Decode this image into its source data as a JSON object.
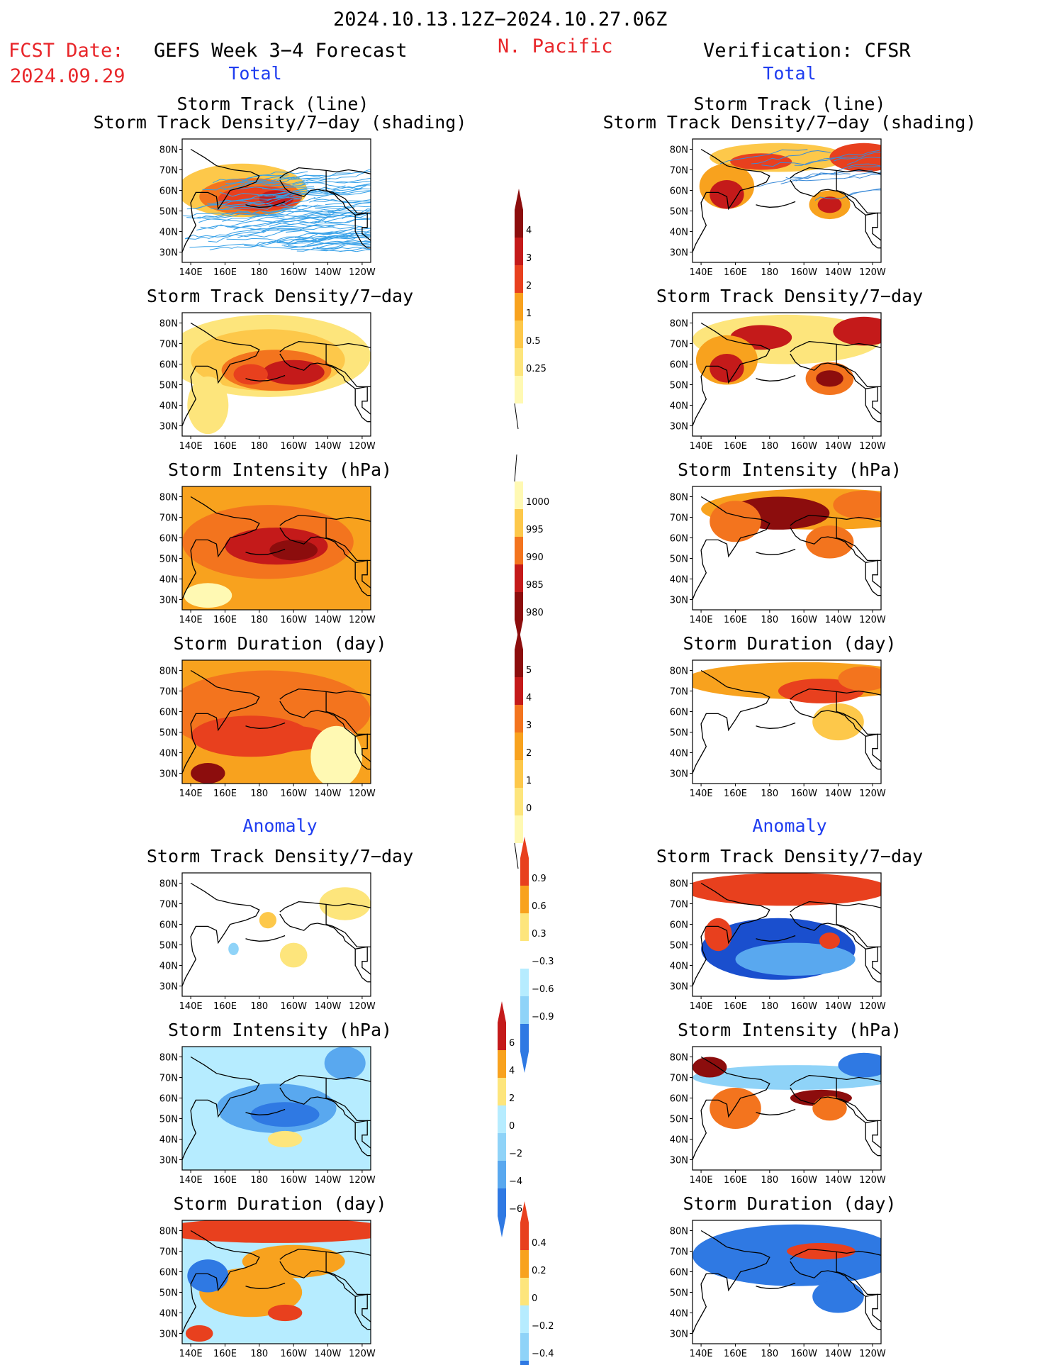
{
  "header": {
    "date_range": "2024.10.13.12Z−2024.10.27.06Z",
    "fcst_label": "FCST Date:",
    "fcst_date": "2024.09.29",
    "forecast_title": "GEFS Week 3−4 Forecast",
    "region": "N. Pacific",
    "verification_title": "Verification: CFSR"
  },
  "sections": {
    "total": "Total",
    "anomaly": "Anomaly"
  },
  "panel_titles": {
    "track_line": "Storm Track (line)",
    "track_shading": "Storm Track Density/7−day (shading)",
    "density": "Storm Track Density/7−day",
    "intensity": "Storm Intensity (hPa)",
    "duration": "Storm Duration (day)"
  },
  "axes": {
    "lon_ticks": [
      "140E",
      "160E",
      "180",
      "160W",
      "140W",
      "120W"
    ],
    "lat_ticks": [
      "80N",
      "70N",
      "60N",
      "50N",
      "40N",
      "30N"
    ]
  },
  "colorbars": {
    "density_total": [
      "4",
      "3",
      "2",
      "1",
      "0.5",
      "0.25"
    ],
    "intensity_total": [
      "1000",
      "995",
      "990",
      "985",
      "980"
    ],
    "duration_total": [
      "5",
      "4",
      "3",
      "2",
      "1",
      "0"
    ],
    "density_anom": [
      "0.9",
      "0.6",
      "0.3",
      "−0.3",
      "−0.6",
      "−0.9"
    ],
    "intensity_anom": [
      "6",
      "4",
      "2",
      "0",
      "−2",
      "−4",
      "−6"
    ],
    "duration_anom": [
      "0.4",
      "0.2",
      "0",
      "−0.2",
      "−0.4"
    ]
  },
  "colors": {
    "warm": [
      "#fff9b3",
      "#fde57c",
      "#fdc84a",
      "#f8a21e",
      "#f3741e",
      "#e8401e",
      "#c41a1a",
      "#8c0d0d"
    ],
    "cool": [
      "#ffffff",
      "#b6ecff",
      "#8fd3f8",
      "#59a8ef",
      "#2f79e3",
      "#1a4fce"
    ],
    "track_forecast": "#35a0e8",
    "track_verification": "#3a8ad8",
    "title_red": "#e8262a",
    "title_blue": "#1f3df0"
  },
  "chart_data": [
    {
      "type": "heatmap",
      "column": "GEFS forecast",
      "panel": "Storm Track (line) / Storm Track Density/7-day (shading)",
      "units": "tracks per 7 days",
      "max_region": "50N-60N, 170E-150W",
      "levels": [
        0.25,
        0.5,
        1,
        2,
        3,
        4
      ]
    },
    {
      "type": "heatmap",
      "column": "CFSR verification",
      "panel": "Storm Track (line) / Storm Track Density/7-day (shading)",
      "units": "tracks per 7 days",
      "max_region": "Sea of Okhotsk 50N-65N; Gulf of Alaska 50N-55N 150W-140W; northern Canada 75N",
      "levels": [
        0.25,
        0.5,
        1,
        2,
        3,
        4
      ]
    },
    {
      "type": "heatmap",
      "column": "GEFS forecast",
      "panel": "Storm Track Density/7-day",
      "max_region": "55N, 170E-150W",
      "levels": [
        0.25,
        0.5,
        1,
        2,
        3,
        4
      ]
    },
    {
      "type": "heatmap",
      "column": "CFSR verification",
      "panel": "Storm Track Density/7-day",
      "levels": [
        0.25,
        0.5,
        1,
        2,
        3,
        4
      ]
    },
    {
      "type": "heatmap",
      "column": "GEFS forecast",
      "panel": "Storm Intensity (hPa)",
      "levels": [
        980,
        985,
        990,
        995,
        1000
      ]
    },
    {
      "type": "heatmap",
      "column": "CFSR verification",
      "panel": "Storm Intensity (hPa)",
      "levels": [
        980,
        985,
        990,
        995,
        1000
      ]
    },
    {
      "type": "heatmap",
      "column": "GEFS forecast",
      "panel": "Storm Duration (day)",
      "levels": [
        0,
        1,
        2,
        3,
        4,
        5
      ]
    },
    {
      "type": "heatmap",
      "column": "CFSR verification",
      "panel": "Storm Duration (day)",
      "levels": [
        0,
        1,
        2,
        3,
        4,
        5
      ]
    },
    {
      "type": "heatmap",
      "column": "GEFS forecast",
      "panel": "Anomaly Storm Track Density/7-day",
      "levels": [
        -0.9,
        -0.6,
        -0.3,
        0.3,
        0.6,
        0.9
      ]
    },
    {
      "type": "heatmap",
      "column": "CFSR verification",
      "panel": "Anomaly Storm Track Density/7-day",
      "levels": [
        -0.9,
        -0.6,
        -0.3,
        0.3,
        0.6,
        0.9
      ]
    },
    {
      "type": "heatmap",
      "column": "GEFS forecast",
      "panel": "Anomaly Storm Intensity (hPa)",
      "levels": [
        -6,
        -4,
        -2,
        0,
        2,
        4,
        6
      ]
    },
    {
      "type": "heatmap",
      "column": "CFSR verification",
      "panel": "Anomaly Storm Intensity (hPa)",
      "levels": [
        -6,
        -4,
        -2,
        0,
        2,
        4,
        6
      ]
    },
    {
      "type": "heatmap",
      "column": "GEFS forecast",
      "panel": "Anomaly Storm Duration (day)",
      "levels": [
        -0.4,
        -0.2,
        0,
        0.2,
        0.4
      ]
    },
    {
      "type": "heatmap",
      "column": "CFSR verification",
      "panel": "Anomaly Storm Duration (day)",
      "levels": [
        -0.4,
        -0.2,
        0,
        0.2,
        0.4
      ]
    }
  ]
}
